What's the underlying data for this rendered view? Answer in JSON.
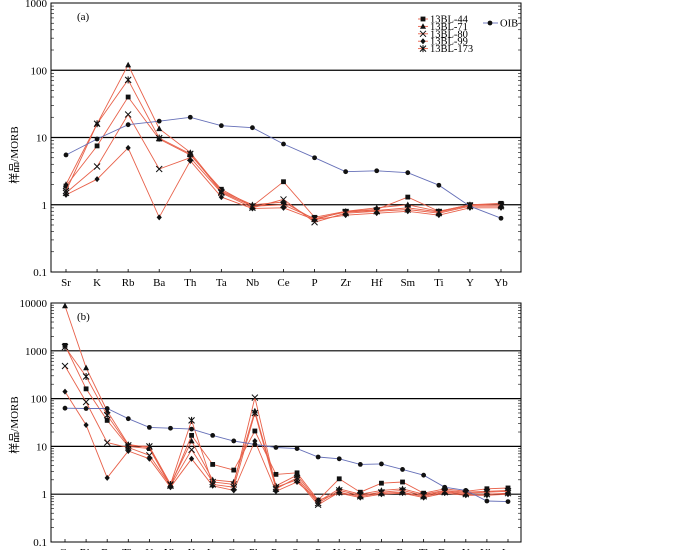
{
  "colors": {
    "sample": "#e8614a",
    "oib": "#6670b8",
    "frame": "#000000"
  },
  "legend": {
    "samples": [
      "13BL-44",
      "13BL-71",
      "13BL-80",
      "13BL-99",
      "13BL-173"
    ],
    "oib": "OIB"
  },
  "chart_data": [
    {
      "type": "line",
      "panel_label": "(a)",
      "title": "",
      "ylabel": "样品/MORB",
      "xlabel": "",
      "yscale": "log",
      "ylim": [
        0.1,
        1000
      ],
      "y_ticks": [
        "0.1",
        "1",
        "10",
        "100",
        "1000"
      ],
      "categories": [
        "Sr",
        "K",
        "Rb",
        "Ba",
        "Th",
        "Ta",
        "Nb",
        "Ce",
        "P",
        "Zr",
        "Hf",
        "Sm",
        "Ti",
        "Y",
        "Yb"
      ],
      "series": [
        {
          "name": "13BL-44",
          "marker": "square",
          "values": [
            1.9,
            7.5,
            40,
            9.5,
            5.5,
            1.7,
            0.95,
            2.2,
            0.65,
            0.8,
            0.85,
            1.3,
            0.8,
            1.0,
            1.05
          ]
        },
        {
          "name": "13BL-71",
          "marker": "triangle",
          "values": [
            2.0,
            16,
            120,
            13.5,
            6.0,
            1.6,
            1.0,
            1.1,
            0.6,
            0.8,
            0.9,
            1.0,
            0.8,
            1.0,
            1.0
          ]
        },
        {
          "name": "13BL-80",
          "marker": "x",
          "values": [
            1.5,
            3.7,
            22,
            3.4,
            5.0,
            1.5,
            0.9,
            1.2,
            0.55,
            0.75,
            0.8,
            0.85,
            0.75,
            0.95,
            0.95
          ]
        },
        {
          "name": "13BL-99",
          "marker": "diamond",
          "values": [
            1.4,
            2.4,
            7.0,
            0.65,
            4.5,
            1.3,
            0.88,
            0.9,
            0.6,
            0.7,
            0.75,
            0.8,
            0.7,
            0.9,
            0.9
          ]
        },
        {
          "name": "13BL-173",
          "marker": "star",
          "values": [
            1.6,
            16,
            72,
            9.8,
            5.7,
            1.55,
            0.95,
            1.0,
            0.62,
            0.78,
            0.82,
            0.9,
            0.78,
            0.98,
            1.0
          ]
        },
        {
          "name": "OIB",
          "marker": "circle",
          "values": [
            5.5,
            9.5,
            15.5,
            17.5,
            20,
            15,
            14,
            8,
            5,
            3.1,
            3.2,
            3.0,
            1.95,
            0.95,
            0.63
          ]
        }
      ]
    },
    {
      "type": "line",
      "panel_label": "(b)",
      "title": "",
      "ylabel": "样品/MORB",
      "xlabel": "",
      "yscale": "log",
      "ylim": [
        0.1,
        10000
      ],
      "y_ticks": [
        "0.1",
        "1",
        "10",
        "100",
        "1000",
        "10000"
      ],
      "categories": [
        "Cs",
        "Rb",
        "Ba",
        "Th",
        "U",
        "Nb",
        "K",
        "La",
        "Ce",
        "Pb",
        "Pr",
        "Sr",
        "P",
        "Nd",
        "Zr",
        "Sm",
        "Eu",
        "Ti",
        "Dy",
        "Y",
        "Yb",
        "Lu"
      ],
      "series": [
        {
          "name": "13BL-44",
          "marker": "square",
          "values": [
            1300,
            160,
            35,
            10,
            9,
            1.5,
            17,
            4.2,
            3.2,
            21,
            2.6,
            2.8,
            0.75,
            2.1,
            1.1,
            1.7,
            1.8,
            1.05,
            1.3,
            1.15,
            1.3,
            1.35
          ]
        },
        {
          "name": "13BL-71",
          "marker": "triangle",
          "values": [
            8700,
            440,
            55,
            11,
            9.5,
            1.6,
            13,
            2.0,
            1.8,
            55,
            1.5,
            2.5,
            0.7,
            1.3,
            1.0,
            1.2,
            1.3,
            1.0,
            1.2,
            1.1,
            1.15,
            1.2
          ]
        },
        {
          "name": "13BL-80",
          "marker": "x",
          "values": [
            480,
            85,
            12,
            9.5,
            6.5,
            1.5,
            8.5,
            1.8,
            1.6,
            105,
            1.4,
            2.0,
            0.6,
            1.1,
            0.9,
            1.05,
            1.1,
            0.9,
            1.1,
            1.0,
            1.0,
            1.05
          ]
        },
        {
          "name": "13BL-99",
          "marker": "diamond",
          "values": [
            140,
            28,
            2.2,
            8,
            5.5,
            1.4,
            5.5,
            1.5,
            1.2,
            13,
            1.15,
            1.8,
            0.75,
            1.05,
            0.85,
            1.0,
            1.05,
            0.85,
            1.05,
            0.95,
            0.95,
            1.0
          ]
        },
        {
          "name": "13BL-173",
          "marker": "star",
          "values": [
            1200,
            290,
            45,
            10.5,
            10,
            1.6,
            35,
            1.6,
            1.4,
            50,
            1.3,
            2.2,
            0.65,
            1.2,
            0.95,
            1.1,
            1.2,
            0.95,
            1.15,
            1.05,
            1.1,
            1.15
          ]
        },
        {
          "name": "OIB",
          "marker": "circle",
          "values": [
            63,
            62,
            62,
            38,
            25,
            24,
            23,
            17,
            13,
            11,
            9.5,
            9.0,
            6.0,
            5.5,
            4.2,
            4.3,
            3.3,
            2.5,
            1.4,
            1.2,
            0.72,
            0.7
          ]
        }
      ]
    }
  ]
}
